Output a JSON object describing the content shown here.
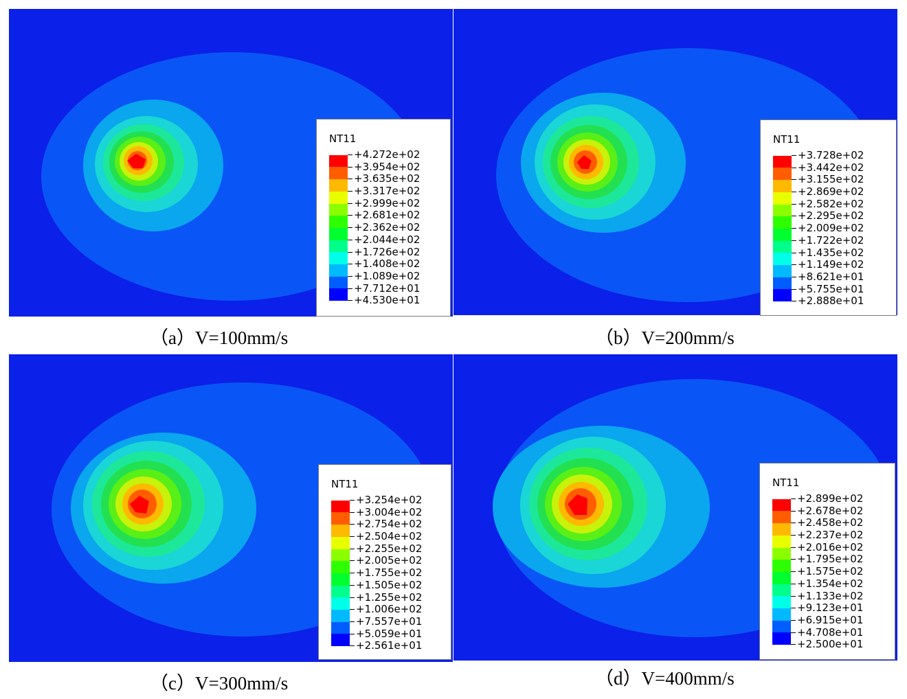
{
  "colors": {
    "background": "#0b20e8",
    "outer_zone": "#0a55f6",
    "contour_palette": [
      "#0000ff",
      "#005dff",
      "#00b9ff",
      "#00ffe8",
      "#00ff8b",
      "#00ff2e",
      "#2eff00",
      "#8bff00",
      "#e8ff00",
      "#ffb900",
      "#ff5d00",
      "#ff0000"
    ]
  },
  "panels": [
    {
      "id": "a",
      "caption": "（a）V=100mm/s",
      "legend": {
        "title": "NT11",
        "values": [
          "+4.272e+02",
          "+3.954e+02",
          "+3.635e+02",
          "+3.317e+02",
          "+2.999e+02",
          "+2.681e+02",
          "+2.362e+02",
          "+2.044e+02",
          "+1.726e+02",
          "+1.408e+02",
          "+1.089e+02",
          "+7.712e+01",
          "+4.530e+01"
        ]
      }
    },
    {
      "id": "b",
      "caption": "（b）V=200mm/s",
      "legend": {
        "title": "NT11",
        "values": [
          "+3.728e+02",
          "+3.442e+02",
          "+3.155e+02",
          "+2.869e+02",
          "+2.582e+02",
          "+2.295e+02",
          "+2.009e+02",
          "+1.722e+02",
          "+1.435e+02",
          "+1.149e+02",
          "+8.621e+01",
          "+5.755e+01",
          "+2.888e+01"
        ]
      }
    },
    {
      "id": "c",
      "caption": "（c）V=300mm/s",
      "legend": {
        "title": "NT11",
        "values": [
          "+3.254e+02",
          "+3.004e+02",
          "+2.754e+02",
          "+2.504e+02",
          "+2.255e+02",
          "+2.005e+02",
          "+1.755e+02",
          "+1.505e+02",
          "+1.255e+02",
          "+1.006e+02",
          "+7.557e+01",
          "+5.059e+01",
          "+2.561e+01"
        ]
      }
    },
    {
      "id": "d",
      "caption": "（d）V=400mm/s",
      "legend": {
        "title": "NT11",
        "values": [
          "+2.899e+02",
          "+2.678e+02",
          "+2.458e+02",
          "+2.237e+02",
          "+2.016e+02",
          "+1.795e+02",
          "+1.575e+02",
          "+1.354e+02",
          "+1.133e+02",
          "+9.123e+01",
          "+6.915e+01",
          "+4.708e+01",
          "+2.500e+01"
        ]
      }
    }
  ]
}
